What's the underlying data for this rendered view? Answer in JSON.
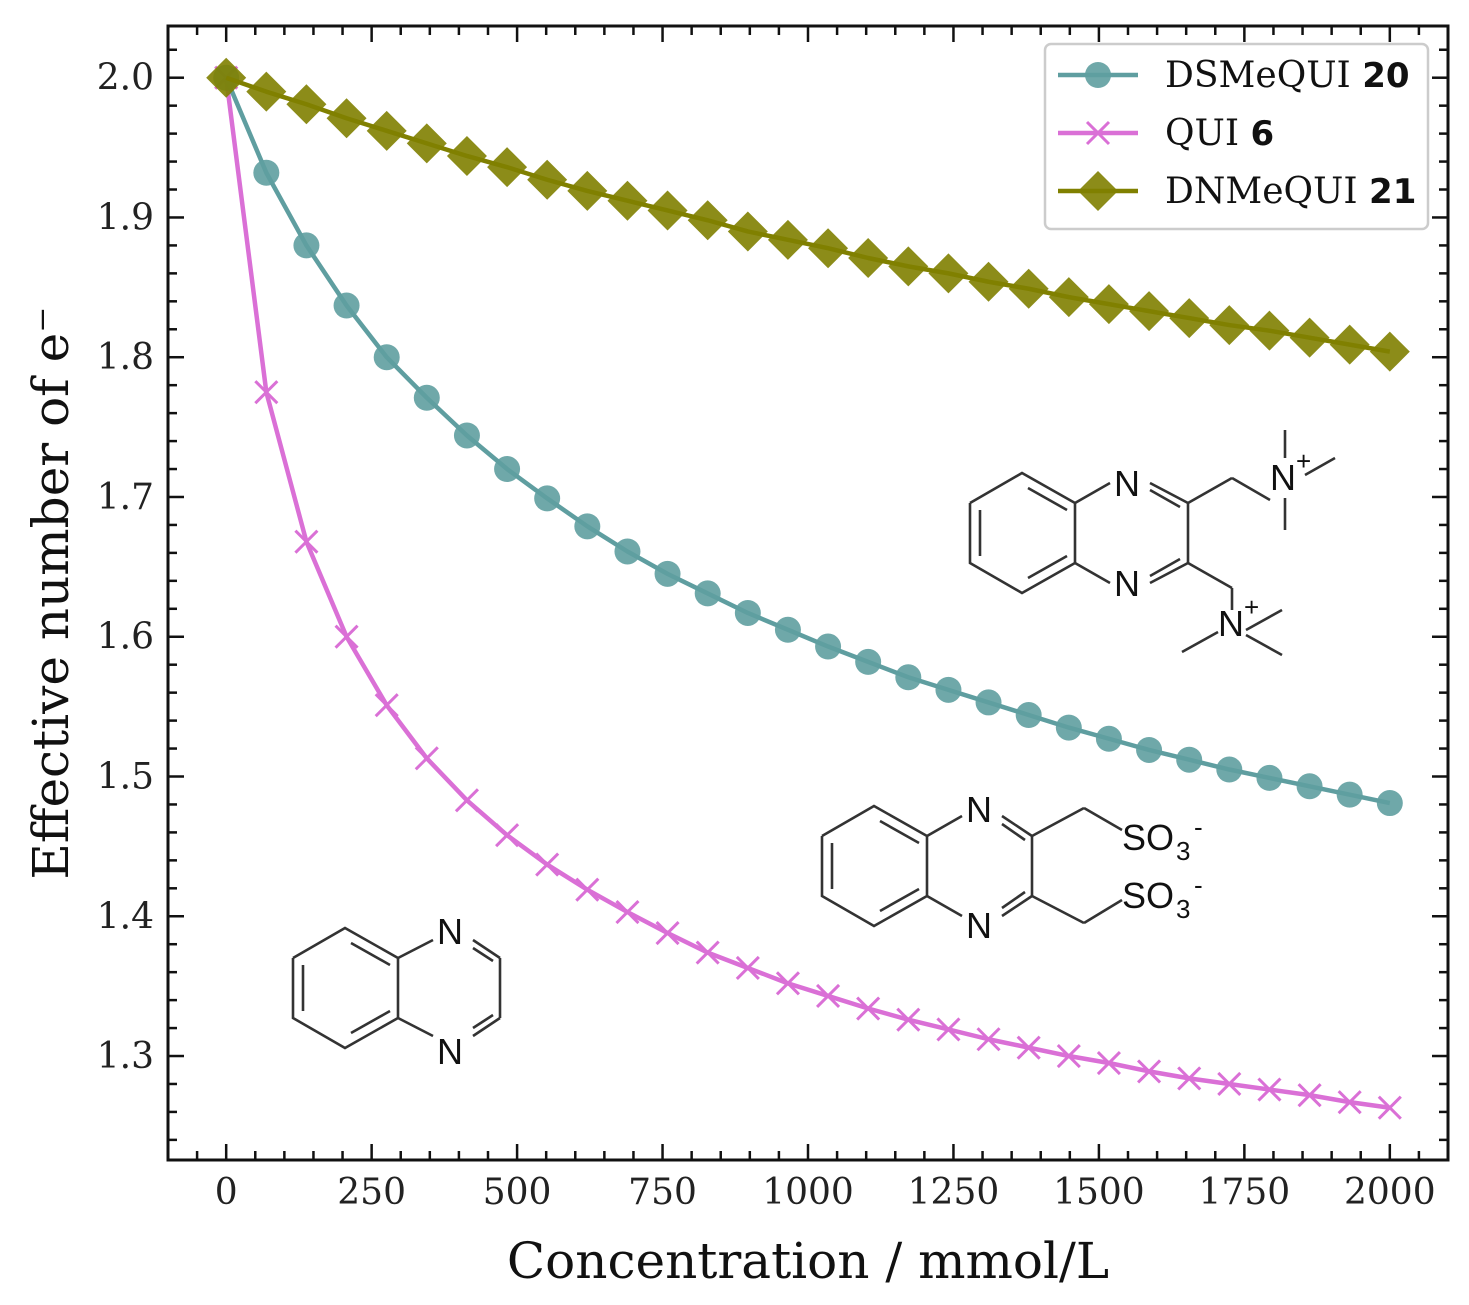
{
  "chart_data": {
    "type": "line",
    "title": "",
    "xlabel": "Concentration / mmol/L",
    "ylabel": "Effective number of e⁻",
    "xlim": [
      -100,
      2100
    ],
    "ylim": [
      1.2256,
      2.037
    ],
    "x_ticks": [
      0,
      250,
      500,
      750,
      1000,
      1250,
      1500,
      1750,
      2000
    ],
    "x_tick_labels": [
      "0",
      "250",
      "500",
      "750",
      "1000",
      "1250",
      "1500",
      "1750",
      "2000"
    ],
    "y_ticks": [
      1.3,
      1.4,
      1.5,
      1.6,
      1.7,
      1.8,
      1.9,
      2.0
    ],
    "y_tick_labels": [
      "1.3",
      "1.4",
      "1.5",
      "1.6",
      "1.7",
      "1.8",
      "1.9",
      "2.0"
    ],
    "grid": false,
    "legend_position": "upper right",
    "x": [
      0,
      69.0,
      137.9,
      206.9,
      275.9,
      344.8,
      413.8,
      482.8,
      551.7,
      620.7,
      689.7,
      758.6,
      827.6,
      896.6,
      965.5,
      1034.5,
      1103.4,
      1172.4,
      1241.4,
      1310.3,
      1379.3,
      1448.3,
      1517.2,
      1586.2,
      1655.2,
      1724.1,
      1793.1,
      1862.1,
      1931.0,
      2000
    ],
    "series": [
      {
        "name": "DSMeQUI",
        "number": "20",
        "color": "#5f9ea0",
        "marker": "circle",
        "values": [
          2.0,
          1.932,
          1.88,
          1.837,
          1.8,
          1.771,
          1.744,
          1.72,
          1.699,
          1.679,
          1.661,
          1.645,
          1.631,
          1.617,
          1.605,
          1.593,
          1.582,
          1.571,
          1.562,
          1.553,
          1.544,
          1.535,
          1.527,
          1.519,
          1.512,
          1.505,
          1.499,
          1.493,
          1.487,
          1.481
        ]
      },
      {
        "name": "QUI",
        "number": "6",
        "color": "#da70d6",
        "marker": "x",
        "values": [
          2.0,
          1.775,
          1.668,
          1.6,
          1.551,
          1.513,
          1.483,
          1.458,
          1.437,
          1.419,
          1.403,
          1.388,
          1.374,
          1.363,
          1.352,
          1.343,
          1.334,
          1.326,
          1.319,
          1.312,
          1.306,
          1.3,
          1.295,
          1.289,
          1.284,
          1.28,
          1.276,
          1.272,
          1.267,
          1.263
        ]
      },
      {
        "name": "DNMeQUI",
        "number": "21",
        "color": "#808000",
        "marker": "diamond",
        "values": [
          2.0,
          1.99,
          1.981,
          1.971,
          1.962,
          1.953,
          1.944,
          1.936,
          1.927,
          1.919,
          1.912,
          1.905,
          1.898,
          1.89,
          1.884,
          1.878,
          1.871,
          1.865,
          1.86,
          1.854,
          1.849,
          1.843,
          1.838,
          1.833,
          1.828,
          1.823,
          1.819,
          1.814,
          1.809,
          1.804
        ]
      }
    ],
    "annotations": [
      {
        "type": "chemical-structure",
        "name": "DNMeQUI 21 structure",
        "labels": [
          "N",
          "N",
          "N+",
          "N+"
        ]
      },
      {
        "type": "chemical-structure",
        "name": "DSMeQUI 20 structure",
        "labels": [
          "N",
          "N",
          "SO3-",
          "SO3-"
        ]
      },
      {
        "type": "chemical-structure",
        "name": "QUI 6 structure (quinoxaline)",
        "labels": [
          "N",
          "N"
        ]
      }
    ]
  },
  "molecules": {
    "n_label": "N",
    "n_plus": "+",
    "so3": "SO",
    "so3_sub": "3",
    "so3_charge": "-"
  }
}
